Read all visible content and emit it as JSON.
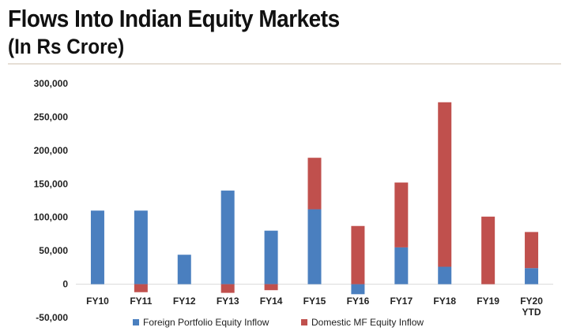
{
  "header": {
    "title": "Flows Into Indian Equity Markets",
    "subtitle": "(In Rs Crore)"
  },
  "colors": {
    "foreign": "#4a7fbf",
    "domestic": "#c0504d",
    "rule": "#e6dfd5"
  },
  "chart_data": {
    "type": "bar",
    "stacked": true,
    "title": "Flows Into Indian Equity Markets",
    "subtitle": "(In Rs Crore)",
    "categories": [
      [
        "FY10"
      ],
      [
        "FY11"
      ],
      [
        "FY12"
      ],
      [
        "FY13"
      ],
      [
        "FY14"
      ],
      [
        "FY15"
      ],
      [
        "FY16"
      ],
      [
        "FY17"
      ],
      [
        "FY18"
      ],
      [
        "FY19"
      ],
      [
        "FY20",
        "YTD"
      ]
    ],
    "series": [
      {
        "name": "Foreign Portfolio Equity Inflow",
        "color": "#4a7fbf",
        "values": [
          110000,
          110000,
          44000,
          140000,
          80000,
          112000,
          -15000,
          55000,
          26000,
          0,
          24000
        ]
      },
      {
        "name": "Domestic MF Equity Inflow",
        "color": "#c0504d",
        "values": [
          0,
          -12000,
          0,
          -13000,
          -9000,
          77000,
          87000,
          97000,
          246000,
          101000,
          54000
        ]
      }
    ],
    "ylim": [
      -50000,
      300000
    ],
    "yticks": [
      -50000,
      0,
      50000,
      100000,
      150000,
      200000,
      250000,
      300000
    ],
    "ytick_labels": [
      "-50,000",
      "0",
      "50,000",
      "100,000",
      "150,000",
      "200,000",
      "250,000",
      "300,000"
    ],
    "legend": "bottom",
    "grid": false
  }
}
